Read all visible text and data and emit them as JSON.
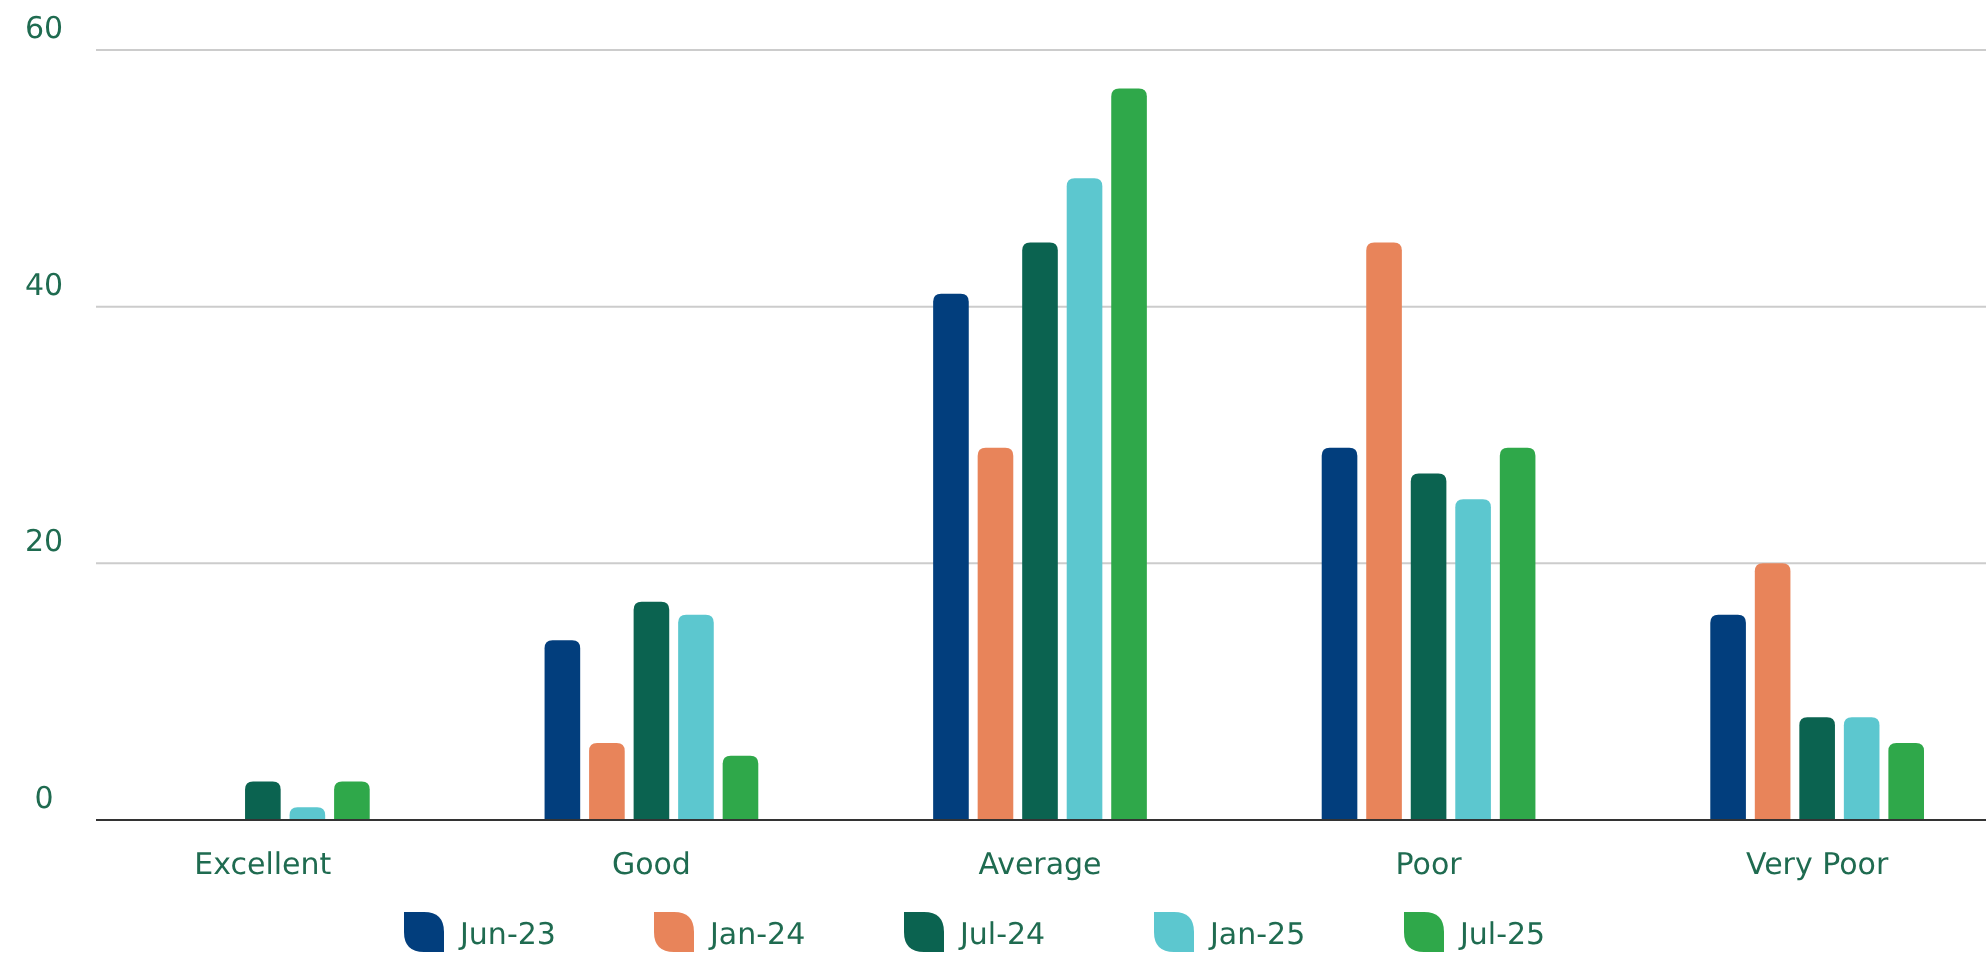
{
  "chart_data": {
    "type": "bar",
    "categories": [
      "Excellent",
      "Good",
      "Average",
      "Poor",
      "Very Poor"
    ],
    "series": [
      {
        "name": "Jun-23",
        "color": "#023e7d",
        "values": [
          0,
          14,
          41,
          29,
          16
        ]
      },
      {
        "name": "Jan-24",
        "color": "#e8845a",
        "values": [
          0,
          6,
          29,
          45,
          20
        ]
      },
      {
        "name": "Jul-24",
        "color": "#0b6350",
        "values": [
          3,
          17,
          45,
          27,
          8
        ]
      },
      {
        "name": "Jan-25",
        "color": "#5cc7cf",
        "values": [
          1,
          16,
          50,
          25,
          8
        ]
      },
      {
        "name": "Jul-25",
        "color": "#2fa84a",
        "values": [
          3,
          5,
          57,
          29,
          6
        ]
      }
    ],
    "ylim": [
      0,
      60
    ],
    "yticks": [
      0,
      20,
      40,
      60
    ],
    "grid": "y",
    "legend": "bottom"
  }
}
